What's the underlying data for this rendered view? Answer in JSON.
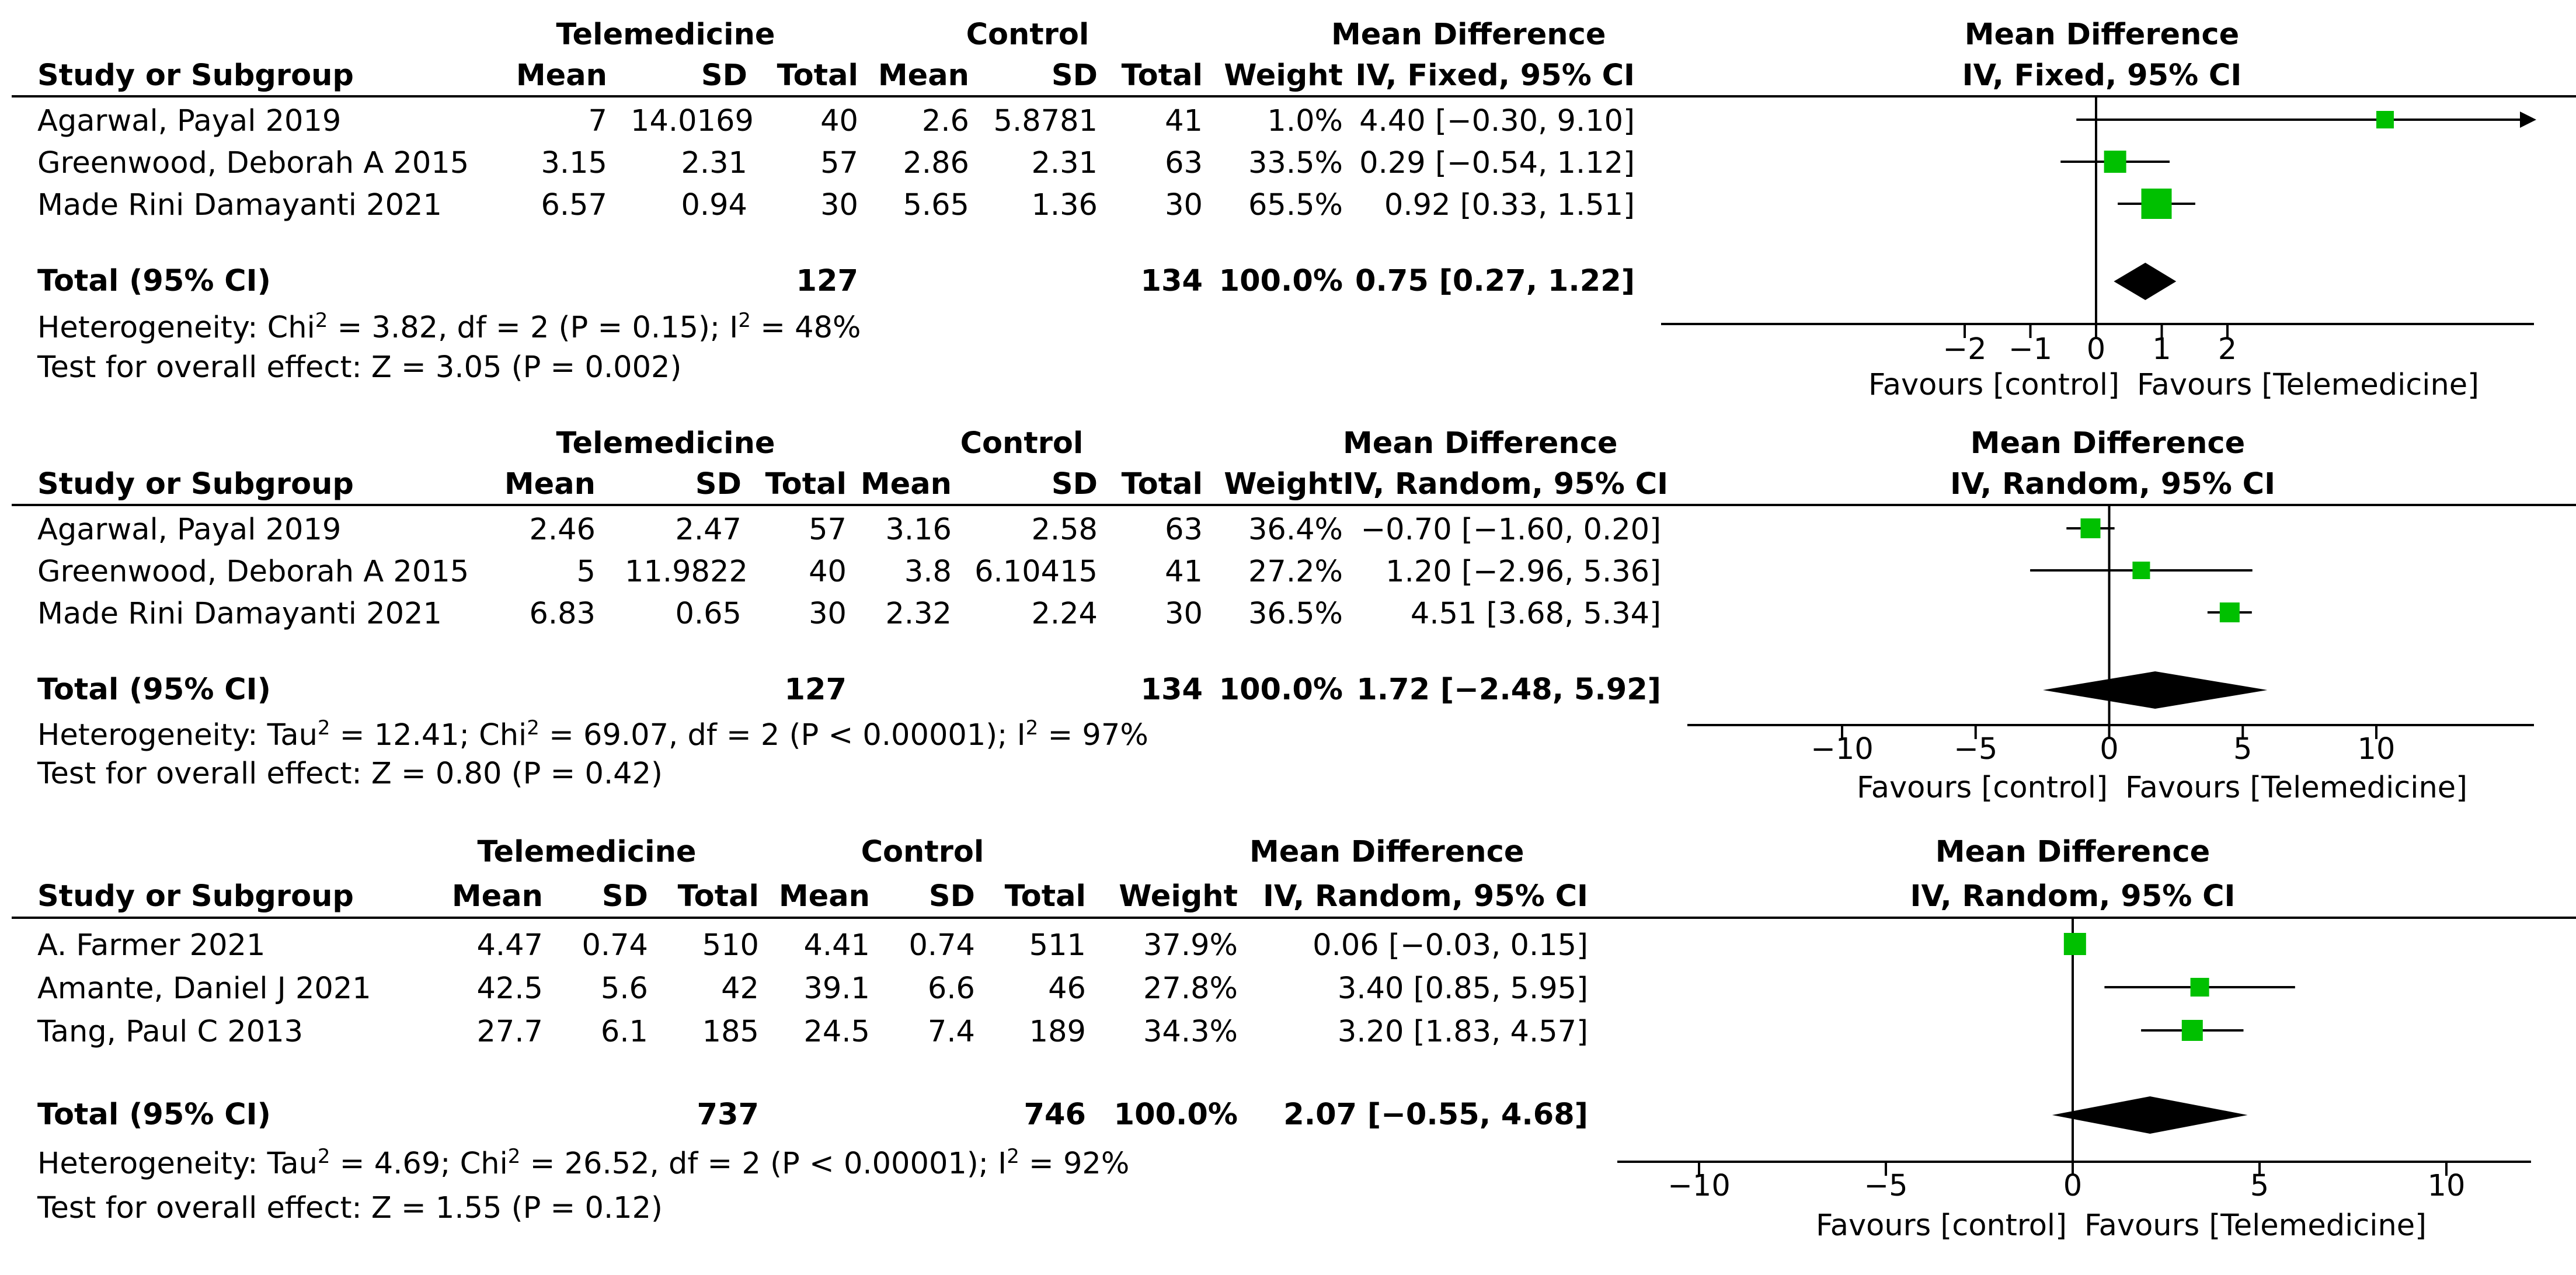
{
  "chart_data": [
    {
      "type": "forest",
      "headers": {
        "study": "Study or Subgroup",
        "group1": "Telemedicine",
        "group2": "Control",
        "mean": "Mean",
        "sd": "SD",
        "total": "Total",
        "weight": "Weight",
        "md": "Mean Difference",
        "method": "IV, Fixed, 95% CI",
        "plot_title": "Mean Difference",
        "plot_method": "IV, Fixed, 95% CI"
      },
      "studies": [
        {
          "name": "Agarwal, Payal 2019",
          "m1": "7",
          "sd1": "14.0169",
          "n1": "40",
          "m2": "2.6",
          "sd2": "5.8781",
          "n2": "41",
          "weight": "1.0%",
          "ci_text": "4.40 [−0.30, 9.10]",
          "est": 4.4,
          "lo": -0.3,
          "hi": 9.1
        },
        {
          "name": "Greenwood, Deborah A 2015",
          "m1": "3.15",
          "sd1": "2.31",
          "n1": "57",
          "m2": "2.86",
          "sd2": "2.31",
          "n2": "63",
          "weight": "33.5%",
          "ci_text": "0.29 [−0.54, 1.12]",
          "est": 0.29,
          "lo": -0.54,
          "hi": 1.12
        },
        {
          "name": "Made Rini Damayanti 2021",
          "m1": "6.57",
          "sd1": "0.94",
          "n1": "30",
          "m2": "5.65",
          "sd2": "1.36",
          "n2": "30",
          "weight": "65.5%",
          "ci_text": "0.92 [0.33, 1.51]",
          "est": 0.92,
          "lo": 0.33,
          "hi": 1.51
        }
      ],
      "total": {
        "label": "Total (95% CI)",
        "n1": "127",
        "n2": "134",
        "weight": "100.0%",
        "ci_text": "0.75 [0.27, 1.22]",
        "est": 0.75,
        "lo": 0.27,
        "hi": 1.22
      },
      "heterogeneity_pre": "Heterogeneity: Chi",
      "heterogeneity_post": " = 3.82, df = 2 (P = 0.15); I",
      "heterogeneity_end": " = 48%",
      "overall": "Test for overall effect: Z = 3.05 (P = 0.002)",
      "axis": {
        "min": -2,
        "max": 2,
        "ticks": [
          "−2",
          "−1",
          "0",
          "1",
          "2"
        ],
        "tick_values": [
          -2,
          -1,
          0,
          1,
          2
        ]
      },
      "favours_left": "Favours [control]",
      "favours_right": "Favours [Telemedicine]",
      "marker_color": "#00c000"
    },
    {
      "type": "forest",
      "headers": {
        "study": "Study or Subgroup",
        "group1": "Telemedicine",
        "group2": "Control",
        "mean": "Mean",
        "sd": "SD",
        "total": "Total",
        "weight": "Weight",
        "md": "Mean Difference",
        "method": "IV, Random, 95% CI",
        "plot_title": "Mean Difference",
        "plot_method": "IV, Random, 95% CI"
      },
      "studies": [
        {
          "name": "Agarwal, Payal 2019",
          "m1": "2.46",
          "sd1": "2.47",
          "n1": "57",
          "m2": "3.16",
          "sd2": "2.58",
          "n2": "63",
          "weight": "36.4%",
          "ci_text": "−0.70 [−1.60, 0.20]",
          "est": -0.7,
          "lo": -1.6,
          "hi": 0.2
        },
        {
          "name": "Greenwood, Deborah A 2015",
          "m1": "5",
          "sd1": "11.9822",
          "n1": "40",
          "m2": "3.8",
          "sd2": "6.10415",
          "n2": "41",
          "weight": "27.2%",
          "ci_text": "1.20 [−2.96, 5.36]",
          "est": 1.2,
          "lo": -2.96,
          "hi": 5.36
        },
        {
          "name": "Made Rini Damayanti 2021",
          "m1": "6.83",
          "sd1": "0.65",
          "n1": "30",
          "m2": "2.32",
          "sd2": "2.24",
          "n2": "30",
          "weight": "36.5%",
          "ci_text": "4.51 [3.68, 5.34]",
          "est": 4.51,
          "lo": 3.68,
          "hi": 5.34
        }
      ],
      "total": {
        "label": "Total (95% CI)",
        "n1": "127",
        "n2": "134",
        "weight": "100.0%",
        "ci_text": "1.72 [−2.48, 5.92]",
        "est": 1.72,
        "lo": -2.48,
        "hi": 5.92
      },
      "heterogeneity_pre": "Heterogeneity: Tau",
      "heterogeneity_mid": " = 12.41; Chi",
      "heterogeneity_post": " = 69.07, df = 2 (P < 0.00001); I",
      "heterogeneity_end": " = 97%",
      "overall": "Test for overall effect: Z = 0.80 (P = 0.42)",
      "axis": {
        "min": -10,
        "max": 10,
        "ticks": [
          "−10",
          "−5",
          "0",
          "5",
          "10"
        ],
        "tick_values": [
          -10,
          -5,
          0,
          5,
          10
        ]
      },
      "favours_left": "Favours [control]",
      "favours_right": "Favours [Telemedicine]",
      "marker_color": "#00c000"
    },
    {
      "type": "forest",
      "headers": {
        "study": "Study or Subgroup",
        "group1": "Telemedicine",
        "group2": "Control",
        "mean": "Mean",
        "sd": "SD",
        "total": "Total",
        "weight": "Weight",
        "md": "Mean Difference",
        "method": "IV, Random, 95% CI",
        "plot_title": "Mean Difference",
        "plot_method": "IV, Random, 95% CI"
      },
      "studies": [
        {
          "name": "A. Farmer 2021",
          "m1": "4.47",
          "sd1": "0.74",
          "n1": "510",
          "m2": "4.41",
          "sd2": "0.74",
          "n2": "511",
          "weight": "37.9%",
          "ci_text": "0.06 [−0.03, 0.15]",
          "est": 0.06,
          "lo": -0.03,
          "hi": 0.15
        },
        {
          "name": "Amante, Daniel J 2021",
          "m1": "42.5",
          "sd1": "5.6",
          "n1": "42",
          "m2": "39.1",
          "sd2": "6.6",
          "n2": "46",
          "weight": "27.8%",
          "ci_text": "3.40 [0.85, 5.95]",
          "est": 3.4,
          "lo": 0.85,
          "hi": 5.95
        },
        {
          "name": "Tang, Paul C 2013",
          "m1": "27.7",
          "sd1": "6.1",
          "n1": "185",
          "m2": "24.5",
          "sd2": "7.4",
          "n2": "189",
          "weight": "34.3%",
          "ci_text": "3.20 [1.83, 4.57]",
          "est": 3.2,
          "lo": 1.83,
          "hi": 4.57
        }
      ],
      "total": {
        "label": "Total (95% CI)",
        "n1": "737",
        "n2": "746",
        "weight": "100.0%",
        "ci_text": "2.07 [−0.55, 4.68]",
        "est": 2.07,
        "lo": -0.55,
        "hi": 4.68
      },
      "heterogeneity_pre": "Heterogeneity: Tau",
      "heterogeneity_mid": " = 4.69; Chi",
      "heterogeneity_post": " = 26.52, df = 2 (P < 0.00001); I",
      "heterogeneity_end": " = 92%",
      "overall": "Test for overall effect: Z = 1.55 (P = 0.12)",
      "axis": {
        "min": -10,
        "max": 10,
        "ticks": [
          "−10",
          "−5",
          "0",
          "5",
          "10"
        ],
        "tick_values": [
          -10,
          -5,
          0,
          5,
          10
        ]
      },
      "favours_left": "Favours [control]",
      "favours_right": "Favours [Telemedicine]",
      "marker_color": "#00c000"
    }
  ]
}
